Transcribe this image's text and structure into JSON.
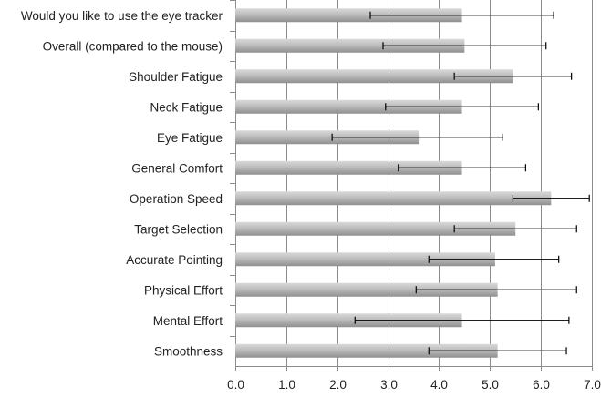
{
  "chart_data": {
    "type": "bar",
    "orientation": "horizontal",
    "categories": [
      "Would you like to use the eye tracker",
      "Overall (compared to the mouse)",
      "Shoulder Fatigue",
      "Neck Fatigue",
      "Eye Fatigue",
      "General Comfort",
      "Operation Speed",
      "Target Selection",
      "Accurate Pointing",
      "Physical Effort",
      "Mental Effort",
      "Smoothness"
    ],
    "values": [
      4.45,
      4.5,
      5.45,
      4.45,
      3.6,
      4.45,
      6.2,
      5.5,
      5.1,
      5.15,
      4.45,
      5.15
    ],
    "error_low": [
      2.65,
      2.9,
      4.3,
      2.95,
      1.9,
      3.2,
      5.45,
      4.3,
      3.8,
      3.55,
      2.35,
      3.8
    ],
    "error_high": [
      6.25,
      6.1,
      6.6,
      5.95,
      5.25,
      5.7,
      6.95,
      6.7,
      6.35,
      6.7,
      6.55,
      6.5
    ],
    "xlim": [
      0,
      7
    ],
    "xticks": [
      "0.0",
      "1.0",
      "2.0",
      "3.0",
      "4.0",
      "5.0",
      "6.0",
      "7.0"
    ],
    "title": "",
    "xlabel": "",
    "ylabel": "",
    "grid": "vertical",
    "legend": "none",
    "colors": {
      "bar_light": "#d4d4d4",
      "bar_dark": "#9a9a9a",
      "grid": "#8c8c8c",
      "axis": "#8c8c8c",
      "error": "#000000"
    }
  }
}
